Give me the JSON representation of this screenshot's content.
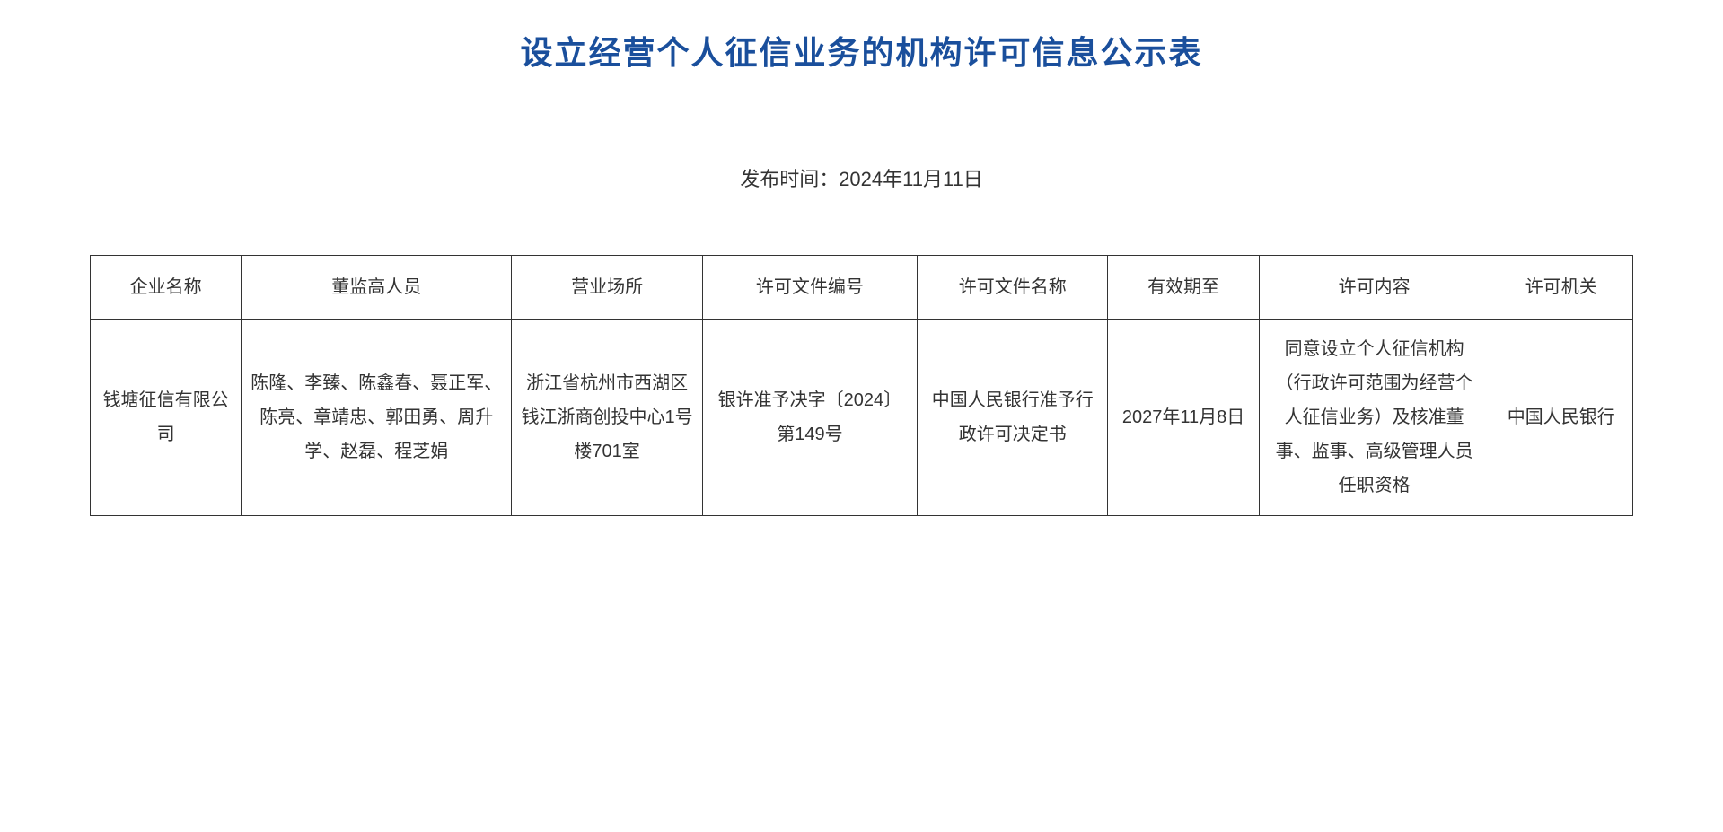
{
  "document": {
    "title": "设立经营个人征信业务的机构许可信息公示表",
    "publish_date_label": "发布时间：2024年11月11日",
    "title_color": "#1a4f9c",
    "text_color": "#333333",
    "border_color": "#333333",
    "background_color": "#ffffff",
    "title_fontsize": 36,
    "body_fontsize": 20
  },
  "table": {
    "columns": [
      "企业名称",
      "董监高人员",
      "营业场所",
      "许可文件编号",
      "许可文件名称",
      "有效期至",
      "许可内容",
      "许可机关"
    ],
    "column_widths_pct": [
      9.5,
      17,
      12,
      13.5,
      12,
      9.5,
      14.5,
      9
    ],
    "rows": [
      {
        "company_name": "钱塘征信有限公司",
        "personnel": "陈隆、李臻、陈鑫春、聂正军、陈亮、章靖忠、郭田勇、周升学、赵磊、程芝娟",
        "business_location": "浙江省杭州市西湖区钱江浙商创投中心1号楼701室",
        "license_doc_number": "银许准予决字〔2024〕第149号",
        "license_doc_name": "中国人民银行准予行政许可决定书",
        "valid_until": "2027年11月8日",
        "license_content": "同意设立个人征信机构（行政许可范围为经营个人征信业务）及核准董事、监事、高级管理人员任职资格",
        "license_authority": "中国人民银行"
      }
    ]
  }
}
